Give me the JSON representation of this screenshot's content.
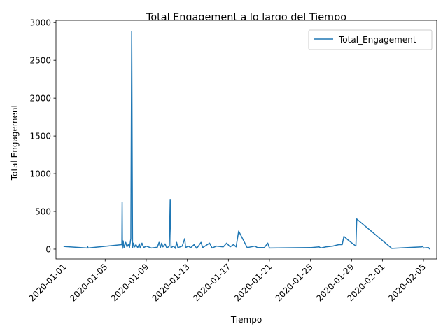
{
  "chart_data": {
    "type": "line",
    "title": "Total Engagement a lo largo del Tiempo",
    "xlabel": "Tiempo",
    "ylabel": "Total Engagement",
    "x_tick_labels": [
      "2020-01-01",
      "2020-01-05",
      "2020-01-09",
      "2020-01-13",
      "2020-01-17",
      "2020-01-21",
      "2020-01-25",
      "2020-01-29",
      "2020-02-01",
      "2020-02-05"
    ],
    "y_tick_labels": [
      "0",
      "500",
      "1000",
      "1500",
      "2000",
      "2500",
      "3000"
    ],
    "ylim": [
      -130,
      3030
    ],
    "xlim": [
      "2019-12-31T05:00",
      "2020-02-06T07:00"
    ],
    "grid": false,
    "legend_position": "top-right",
    "color": "#1f77b4",
    "series": [
      {
        "name": "Total_Engagement",
        "points": [
          [
            "2020-01-01T00:00",
            35
          ],
          [
            "2020-01-03T06:00",
            15
          ],
          [
            "2020-01-03T07:00",
            35
          ],
          [
            "2020-01-03T08:00",
            15
          ],
          [
            "2020-01-06T15:00",
            60
          ],
          [
            "2020-01-06T15:40",
            620
          ],
          [
            "2020-01-06T16:20",
            10
          ],
          [
            "2020-01-06T18:00",
            110
          ],
          [
            "2020-01-06T20:00",
            20
          ],
          [
            "2020-01-07T00:00",
            90
          ],
          [
            "2020-01-07T03:00",
            30
          ],
          [
            "2020-01-07T06:00",
            60
          ],
          [
            "2020-01-07T09:00",
            25
          ],
          [
            "2020-01-07T12:00",
            140
          ],
          [
            "2020-01-07T14:00",
            2880
          ],
          [
            "2020-01-07T16:00",
            20
          ],
          [
            "2020-01-07T18:00",
            80
          ],
          [
            "2020-01-07T21:00",
            30
          ],
          [
            "2020-01-08T00:00",
            60
          ],
          [
            "2020-01-08T04:00",
            20
          ],
          [
            "2020-01-08T08:00",
            70
          ],
          [
            "2020-01-08T10:00",
            15
          ],
          [
            "2020-01-08T14:00",
            80
          ],
          [
            "2020-01-08T18:00",
            20
          ],
          [
            "2020-01-09T00:00",
            40
          ],
          [
            "2020-01-09T12:00",
            15
          ],
          [
            "2020-01-10T02:00",
            25
          ],
          [
            "2020-01-10T06:00",
            90
          ],
          [
            "2020-01-10T09:00",
            20
          ],
          [
            "2020-01-10T12:00",
            80
          ],
          [
            "2020-01-10T15:00",
            30
          ],
          [
            "2020-01-10T20:00",
            70
          ],
          [
            "2020-01-11T00:00",
            15
          ],
          [
            "2020-01-11T06:00",
            40
          ],
          [
            "2020-01-11T08:00",
            660
          ],
          [
            "2020-01-11T10:00",
            20
          ],
          [
            "2020-01-11T16:00",
            40
          ],
          [
            "2020-01-11T20:00",
            10
          ],
          [
            "2020-01-11T23:00",
            90
          ],
          [
            "2020-01-12T02:00",
            20
          ],
          [
            "2020-01-12T12:00",
            40
          ],
          [
            "2020-01-12T18:00",
            140
          ],
          [
            "2020-01-12T20:00",
            20
          ],
          [
            "2020-01-13T02:00",
            40
          ],
          [
            "2020-01-13T08:00",
            20
          ],
          [
            "2020-01-13T16:00",
            60
          ],
          [
            "2020-01-13T22:00",
            10
          ],
          [
            "2020-01-14T08:00",
            90
          ],
          [
            "2020-01-14T12:00",
            20
          ],
          [
            "2020-01-15T04:00",
            80
          ],
          [
            "2020-01-15T10:00",
            15
          ],
          [
            "2020-01-15T20:00",
            40
          ],
          [
            "2020-01-16T12:00",
            30
          ],
          [
            "2020-01-16T20:00",
            80
          ],
          [
            "2020-01-17T04:00",
            30
          ],
          [
            "2020-01-17T12:00",
            60
          ],
          [
            "2020-01-17T18:00",
            30
          ],
          [
            "2020-01-18T00:00",
            240
          ],
          [
            "2020-01-18T20:00",
            20
          ],
          [
            "2020-01-19T14:00",
            40
          ],
          [
            "2020-01-19T20:00",
            20
          ],
          [
            "2020-01-20T12:00",
            20
          ],
          [
            "2020-01-20T20:00",
            80
          ],
          [
            "2020-01-21T00:00",
            15
          ],
          [
            "2020-01-25T00:00",
            20
          ],
          [
            "2020-01-25T20:00",
            30
          ],
          [
            "2020-01-26T00:00",
            15
          ],
          [
            "2020-01-26T12:00",
            30
          ],
          [
            "2020-01-27T04:00",
            40
          ],
          [
            "2020-01-27T18:00",
            60
          ],
          [
            "2020-01-28T02:00",
            60
          ],
          [
            "2020-01-28T06:00",
            170
          ],
          [
            "2020-01-28T16:00",
            120
          ],
          [
            "2020-01-29T10:00",
            40
          ],
          [
            "2020-01-29T12:00",
            400
          ],
          [
            "2020-02-01T22:00",
            10
          ],
          [
            "2020-02-04T20:00",
            30
          ],
          [
            "2020-02-04T22:00",
            40
          ],
          [
            "2020-02-05T00:00",
            15
          ],
          [
            "2020-02-05T12:00",
            20
          ],
          [
            "2020-02-05T14:00",
            5
          ]
        ]
      }
    ]
  }
}
